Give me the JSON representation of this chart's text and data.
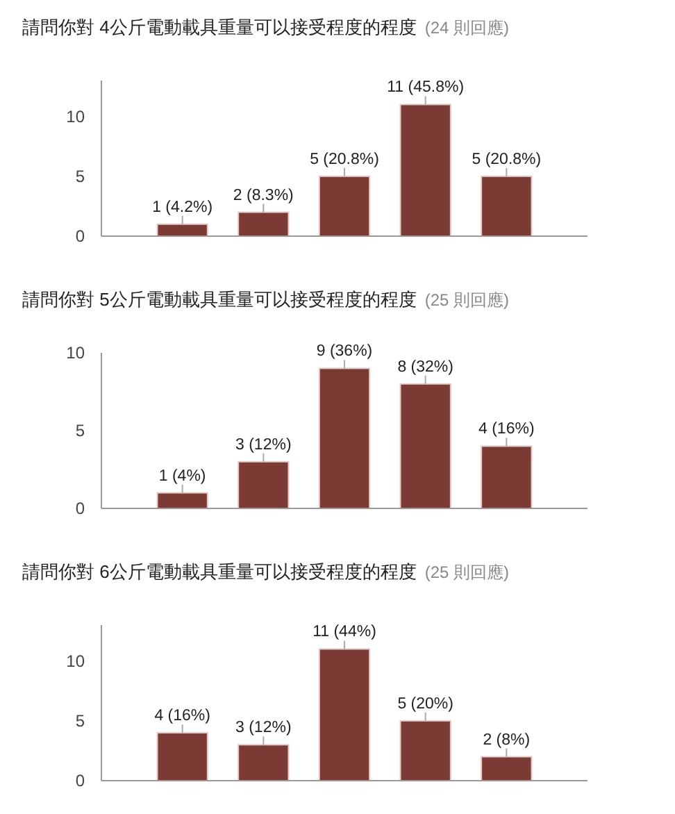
{
  "chart_data": [
    {
      "type": "bar",
      "title": "請問你對 4公斤電動載具重量可以接受程度的程度",
      "subtitle": "(24 則回應)",
      "categories": [
        null,
        null,
        null,
        null,
        null
      ],
      "values": [
        1,
        2,
        5,
        11,
        5
      ],
      "value_labels": [
        "1 (4.2%)",
        "2 (8.3%)",
        "5 (20.8%)",
        "11 (45.8%)",
        "5 (20.8%)"
      ],
      "color": "#7b3b34",
      "ylim": [
        0,
        13
      ],
      "yticks": [
        0,
        5,
        10
      ]
    },
    {
      "type": "bar",
      "title": "請問你對 5公斤電動載具重量可以接受程度的程度",
      "subtitle": "(25 則回應)",
      "categories": [
        null,
        null,
        null,
        null,
        null
      ],
      "values": [
        1,
        3,
        9,
        8,
        4
      ],
      "value_labels": [
        "1 (4%)",
        "3 (12%)",
        "9 (36%)",
        "8 (32%)",
        "4 (16%)"
      ],
      "color": "#7b3b34",
      "ylim": [
        0,
        10
      ],
      "yticks": [
        0,
        5,
        10
      ]
    },
    {
      "type": "bar",
      "title": "請問你對 6公斤電動載具重量可以接受程度的程度",
      "subtitle": "(25 則回應)",
      "categories": [
        null,
        null,
        null,
        null,
        null
      ],
      "values": [
        4,
        3,
        11,
        5,
        2
      ],
      "value_labels": [
        "4 (16%)",
        "3 (12%)",
        "11 (44%)",
        "5 (20%)",
        "2 (8%)"
      ],
      "color": "#7b3b34",
      "ylim": [
        0,
        13
      ],
      "yticks": [
        0,
        5,
        10
      ]
    }
  ]
}
